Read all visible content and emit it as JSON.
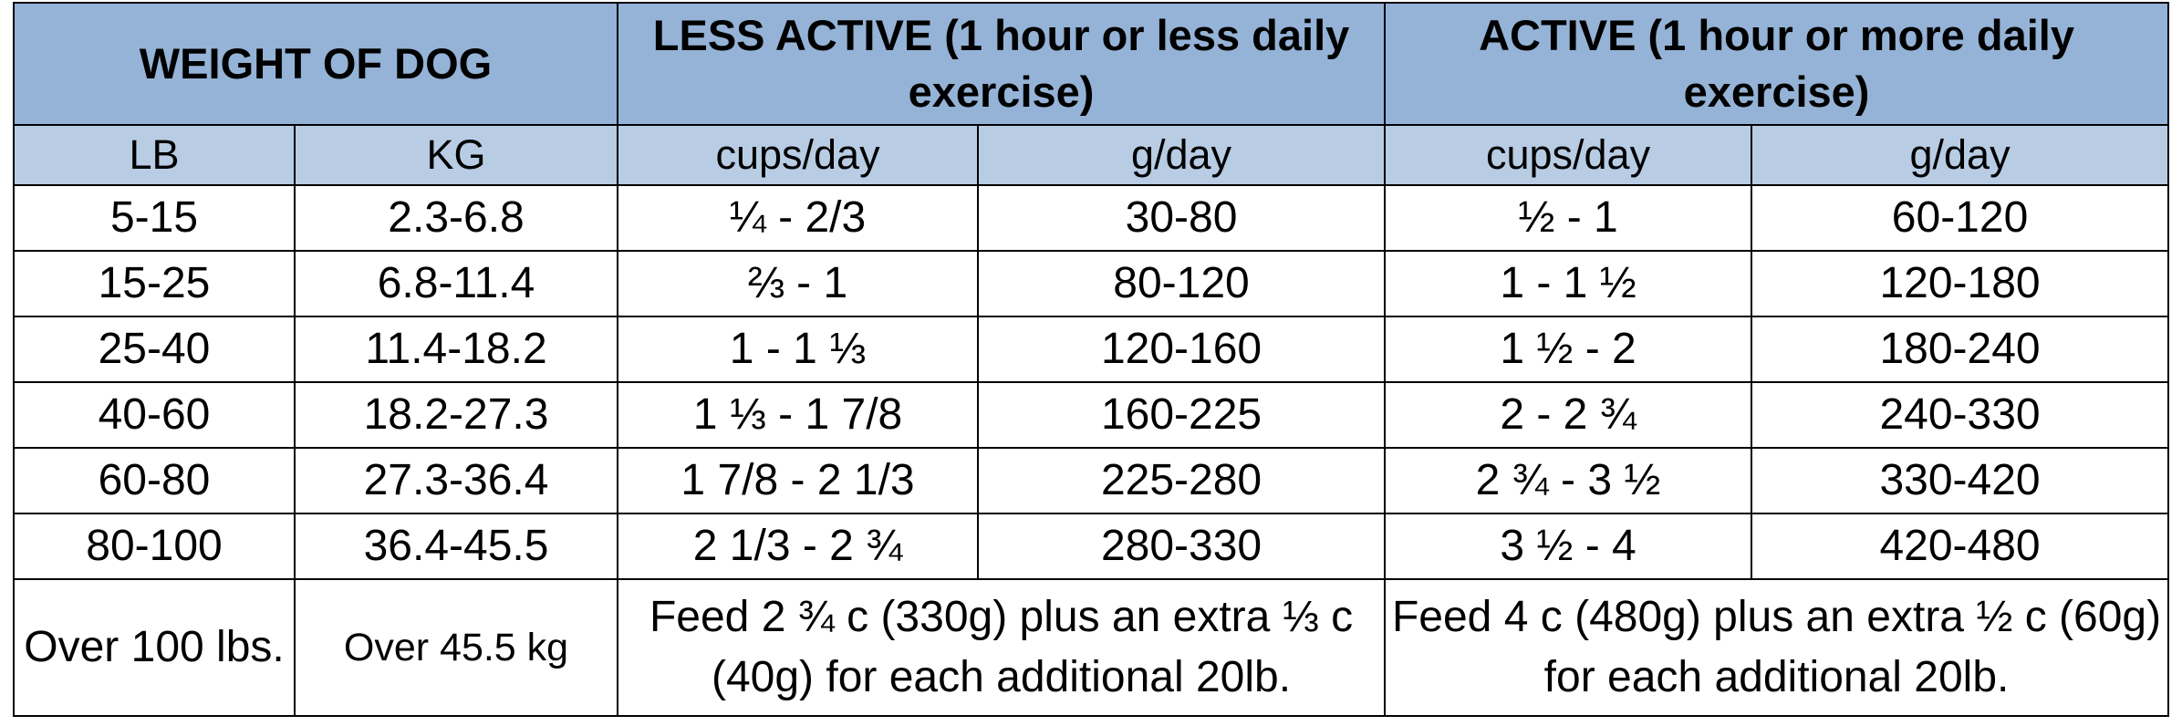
{
  "header": {
    "weight": "WEIGHT OF DOG",
    "less_active": "LESS ACTIVE (1 hour or less daily exercise)",
    "active": "ACTIVE (1 hour or more daily exercise)"
  },
  "subheader": [
    "LB",
    "KG",
    "cups/day",
    "g/day",
    "cups/day",
    "g/day"
  ],
  "rows": [
    {
      "lb": "5-15",
      "kg": "2.3-6.8",
      "la_cups": "¼ - 2/3",
      "la_g": "30-80",
      "a_cups": "½ - 1",
      "a_g": "60-120"
    },
    {
      "lb": "15-25",
      "kg": "6.8-11.4",
      "la_cups": "⅔ - 1",
      "la_g": "80-120",
      "a_cups": "1 - 1 ½",
      "a_g": "120-180"
    },
    {
      "lb": "25-40",
      "kg": "11.4-18.2",
      "la_cups": "1 - 1 ⅓",
      "la_g": "120-160",
      "a_cups": "1 ½ - 2",
      "a_g": "180-240"
    },
    {
      "lb": "40-60",
      "kg": "18.2-27.3",
      "la_cups": "1 ⅓ - 1 7/8",
      "la_g": "160-225",
      "a_cups": "2 - 2 ¾",
      "a_g": "240-330"
    },
    {
      "lb": "60-80",
      "kg": "27.3-36.4",
      "la_cups": "1 7/8 - 2 1/3",
      "la_g": "225-280",
      "a_cups": "2 ¾ - 3 ½",
      "a_g": "330-420"
    },
    {
      "lb": "80-100",
      "kg": "36.4-45.5",
      "la_cups": "2 1/3 - 2 ¾",
      "la_g": "280-330",
      "a_cups": "3 ½ - 4",
      "a_g": "420-480"
    }
  ],
  "last_row": {
    "lb": "Over 100 lbs.",
    "kg": "Over 45.5 kg",
    "less_active": "Feed 2 ¾ c (330g) plus an extra ⅓ c (40g) for each additional 20lb.",
    "active": "Feed 4 c (480g) plus an extra ½ c (60g) for each additional 20lb."
  },
  "colors": {
    "header_bg": "#95b3d7",
    "subheader_bg": "#b8cce4",
    "border": "#000000"
  }
}
